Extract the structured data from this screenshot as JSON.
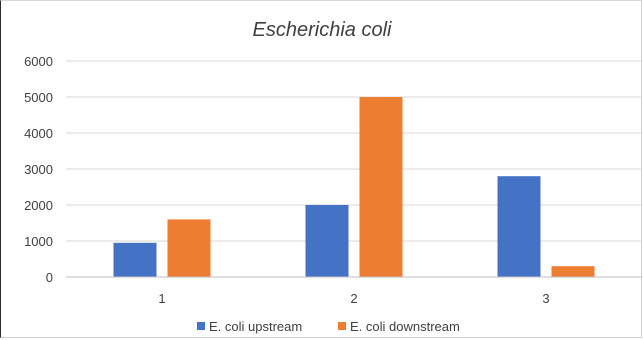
{
  "chart_data": {
    "type": "bar",
    "title": "Escherichia coli",
    "categories": [
      "1",
      "2",
      "3"
    ],
    "series": [
      {
        "name": "E. coli upstream",
        "values": [
          950,
          2000,
          2800
        ],
        "color": "#4472c4"
      },
      {
        "name": "E. coli downstream",
        "values": [
          1600,
          5000,
          300
        ],
        "color": "#ed7d31"
      }
    ],
    "yticks": [
      "0",
      "1000",
      "2000",
      "3000",
      "4000",
      "5000",
      "6000"
    ],
    "ylim": [
      0,
      6000
    ],
    "grid": true,
    "legend_position": "bottom"
  }
}
